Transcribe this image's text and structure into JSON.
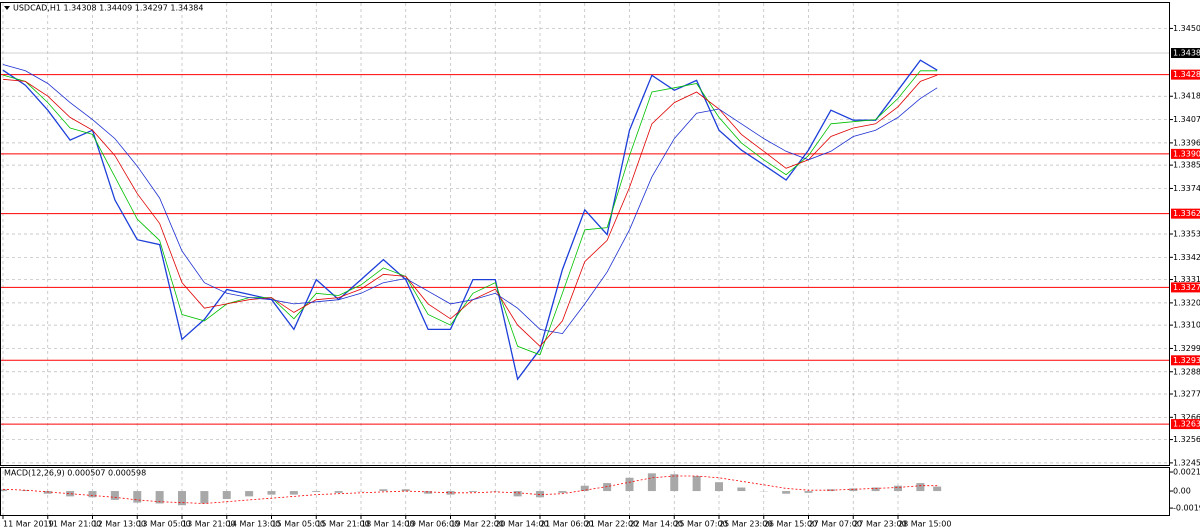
{
  "chart_data": [
    {
      "type": "line",
      "title": "USDCAD,H1 1.34308 1.34409 1.34297 1.34384",
      "x": [
        0,
        8,
        16,
        24,
        32,
        40,
        48,
        56,
        64,
        72,
        80,
        88,
        96,
        104,
        112,
        120,
        128,
        136,
        144,
        152,
        160,
        168,
        176,
        184,
        192,
        200,
        208,
        216,
        224,
        232,
        240,
        248,
        256,
        264,
        272,
        280,
        288,
        296,
        304,
        312,
        320,
        328,
        334
      ],
      "xlim": [
        0,
        417
      ],
      "xticks": [
        {
          "value": 0,
          "label": "11 Mar 2019"
        },
        {
          "value": 16,
          "label": "11 Mar 21:00"
        },
        {
          "value": 32,
          "label": "12 Mar 13:00"
        },
        {
          "value": 48,
          "label": "13 Mar 05:00"
        },
        {
          "value": 64,
          "label": "13 Mar 21:00"
        },
        {
          "value": 80,
          "label": "14 Mar 13:00"
        },
        {
          "value": 96,
          "label": "15 Mar 05:00"
        },
        {
          "value": 112,
          "label": "15 Mar 21:00"
        },
        {
          "value": 128,
          "label": "18 Mar 14:00"
        },
        {
          "value": 144,
          "label": "19 Mar 06:00"
        },
        {
          "value": 160,
          "label": "19 Mar 22:00"
        },
        {
          "value": 176,
          "label": "20 Mar 14:00"
        },
        {
          "value": 192,
          "label": "21 Mar 06:00"
        },
        {
          "value": 208,
          "label": "21 Mar 22:00"
        },
        {
          "value": 224,
          "label": "22 Mar 14:00"
        },
        {
          "value": 240,
          "label": "25 Mar 07:00"
        },
        {
          "value": 256,
          "label": "25 Mar 23:00"
        },
        {
          "value": 272,
          "label": "26 Mar 15:00"
        },
        {
          "value": 288,
          "label": "27 Mar 07:00"
        },
        {
          "value": 304,
          "label": "27 Mar 23:00"
        },
        {
          "value": 320,
          "label": "28 Mar 15:00"
        }
      ],
      "ylim": [
        1.3244,
        1.3462
      ],
      "yticks": [
        {
          "value": 1.345,
          "label": "1.34500"
        },
        {
          "value": 1.3418,
          "label": "1.34180"
        },
        {
          "value": 1.3407,
          "label": "1.34070"
        },
        {
          "value": 1.3396,
          "label": "1.33960"
        },
        {
          "value": 1.33855,
          "label": "1.33855"
        },
        {
          "value": 1.33745,
          "label": "1.33745"
        },
        {
          "value": 1.3353,
          "label": "1.33530"
        },
        {
          "value": 1.3342,
          "label": "1.33420"
        },
        {
          "value": 1.33315,
          "label": "1.33315"
        },
        {
          "value": 1.33205,
          "label": "1.33205"
        },
        {
          "value": 1.331,
          "label": "1.33100"
        },
        {
          "value": 1.3299,
          "label": "1.32990"
        },
        {
          "value": 1.3288,
          "label": "1.32880"
        },
        {
          "value": 1.32775,
          "label": "1.32775"
        },
        {
          "value": 1.32665,
          "label": "1.32665"
        },
        {
          "value": 1.3256,
          "label": "1.32560"
        },
        {
          "value": 1.3245,
          "label": "1.32450"
        }
      ],
      "grid": true,
      "hlines": [
        {
          "value": 1.34282,
          "label": "1.34282"
        },
        {
          "value": 1.33908,
          "label": "1.33908"
        },
        {
          "value": 1.33626,
          "label": "1.33626"
        },
        {
          "value": 1.33278,
          "label": "1.33278"
        },
        {
          "value": 1.32934,
          "label": "1.32934"
        },
        {
          "value": 1.32633,
          "label": "1.32633"
        }
      ],
      "hline_color": "#ff0000",
      "last_price": {
        "value": 1.34384,
        "label": "1.34384"
      },
      "series": [
        {
          "color": "#1c3fd9",
          "width": 1.3,
          "values": [
            1.34303,
            1.34232,
            1.34114,
            1.33973,
            1.3402,
            1.33691,
            1.33503,
            1.3348,
            1.33033,
            1.33127,
            1.33268,
            1.33245,
            1.33221,
            1.3308,
            1.33315,
            1.33221,
            1.33315,
            1.33409,
            1.33315,
            1.3308,
            1.3308,
            1.33315,
            1.33315,
            1.32845,
            1.32986,
            1.33362,
            1.33644,
            1.33527,
            1.3402,
            1.34279,
            1.34208,
            1.34255,
            1.3402,
            1.33926,
            1.33856,
            1.33785,
            1.33926,
            1.34114,
            1.34067,
            1.34067,
            1.34208,
            1.3435,
            1.34303
          ]
        },
        {
          "color": "#00c000",
          "width": 0.8,
          "values": [
            1.3428,
            1.3425,
            1.3415,
            1.3403,
            1.34,
            1.338,
            1.336,
            1.335,
            1.3315,
            1.3312,
            1.332,
            1.3323,
            1.3323,
            1.3313,
            1.3325,
            1.3324,
            1.3329,
            1.3337,
            1.3333,
            1.3315,
            1.331,
            1.3325,
            1.333,
            1.33,
            1.3296,
            1.3325,
            1.3355,
            1.3356,
            1.339,
            1.342,
            1.3422,
            1.3424,
            1.3408,
            1.3396,
            1.3388,
            1.3381,
            1.339,
            1.3405,
            1.3406,
            1.3407,
            1.3417,
            1.343,
            1.343
          ]
        },
        {
          "color": "#e00000",
          "width": 0.8,
          "values": [
            1.3426,
            1.3425,
            1.3418,
            1.3408,
            1.3402,
            1.339,
            1.3372,
            1.3358,
            1.333,
            1.3318,
            1.332,
            1.3322,
            1.3323,
            1.3316,
            1.3322,
            1.3323,
            1.3327,
            1.3334,
            1.3333,
            1.332,
            1.3313,
            1.3322,
            1.3327,
            1.331,
            1.33,
            1.3312,
            1.334,
            1.335,
            1.3375,
            1.3405,
            1.3415,
            1.342,
            1.3412,
            1.34,
            1.3392,
            1.3384,
            1.3388,
            1.3399,
            1.3403,
            1.3405,
            1.3413,
            1.3425,
            1.3428
          ]
        },
        {
          "color": "#1c2fd0",
          "width": 0.8,
          "values": [
            1.3433,
            1.343,
            1.3424,
            1.3415,
            1.3407,
            1.3398,
            1.3385,
            1.337,
            1.3345,
            1.333,
            1.3325,
            1.3323,
            1.3322,
            1.332,
            1.3321,
            1.3322,
            1.3325,
            1.333,
            1.3332,
            1.3326,
            1.332,
            1.3322,
            1.3325,
            1.3318,
            1.3308,
            1.3306,
            1.332,
            1.3335,
            1.3355,
            1.338,
            1.3398,
            1.341,
            1.3412,
            1.3405,
            1.3398,
            1.3392,
            1.3388,
            1.3392,
            1.3399,
            1.3402,
            1.3408,
            1.3417,
            1.3422
          ]
        }
      ]
    },
    {
      "type": "macd",
      "title": "MACD(12,26,9) 0.000507 0.000598",
      "x": [
        0,
        8,
        16,
        24,
        32,
        40,
        48,
        56,
        64,
        72,
        80,
        88,
        96,
        104,
        112,
        120,
        128,
        136,
        144,
        152,
        160,
        168,
        176,
        184,
        192,
        200,
        208,
        216,
        224,
        232,
        240,
        248,
        256,
        264,
        272,
        280,
        288,
        296,
        304,
        312,
        320,
        328,
        334
      ],
      "xlim": [
        0,
        417
      ],
      "ylim": [
        -0.0027,
        0.0026
      ],
      "yticks": [
        {
          "value": 0.002145,
          "label": "0.002145"
        },
        {
          "value": 0,
          "label": "0.00"
        },
        {
          "value": -0.001921,
          "label": "-0.001921"
        }
      ],
      "histogram": {
        "color": "#a8a8a8",
        "values": [
          0.0002,
          0.0001,
          -0.0003,
          -0.0006,
          -0.0007,
          -0.001,
          -0.0013,
          -0.0014,
          -0.0016,
          -0.0014,
          -0.0009,
          -0.0006,
          -0.0004,
          -0.0004,
          -0.0001,
          -0.0002,
          0,
          0.0002,
          0.0002,
          -0.0003,
          -0.0004,
          -0.0001,
          0,
          -0.0006,
          -0.0007,
          -0.0002,
          0.0006,
          0.0009,
          0.0015,
          0.002,
          0.0019,
          0.0017,
          0.001,
          0.0004,
          0,
          -0.0003,
          -0.0002,
          0.0002,
          0.0003,
          0.0004,
          0.0006,
          0.0009,
          0.0005
        ]
      },
      "signal": {
        "color": "#ff0000",
        "values": [
          0.0002,
          0.0001,
          -0.0001,
          -0.0003,
          -0.0005,
          -0.0007,
          -0.001,
          -0.0012,
          -0.0013,
          -0.0014,
          -0.0012,
          -0.001,
          -0.0008,
          -0.0006,
          -0.0004,
          -0.0003,
          -0.0002,
          -0.0001,
          0,
          -0.0001,
          -0.0002,
          -0.0002,
          -0.0001,
          -0.0002,
          -0.0004,
          -0.0003,
          0.0001,
          0.0005,
          0.001,
          0.0015,
          0.0017,
          0.0017,
          0.0015,
          0.0011,
          0.0007,
          0.0003,
          0.0001,
          0.0001,
          0.0002,
          0.0003,
          0.0004,
          0.0006,
          0.0006
        ]
      }
    }
  ]
}
